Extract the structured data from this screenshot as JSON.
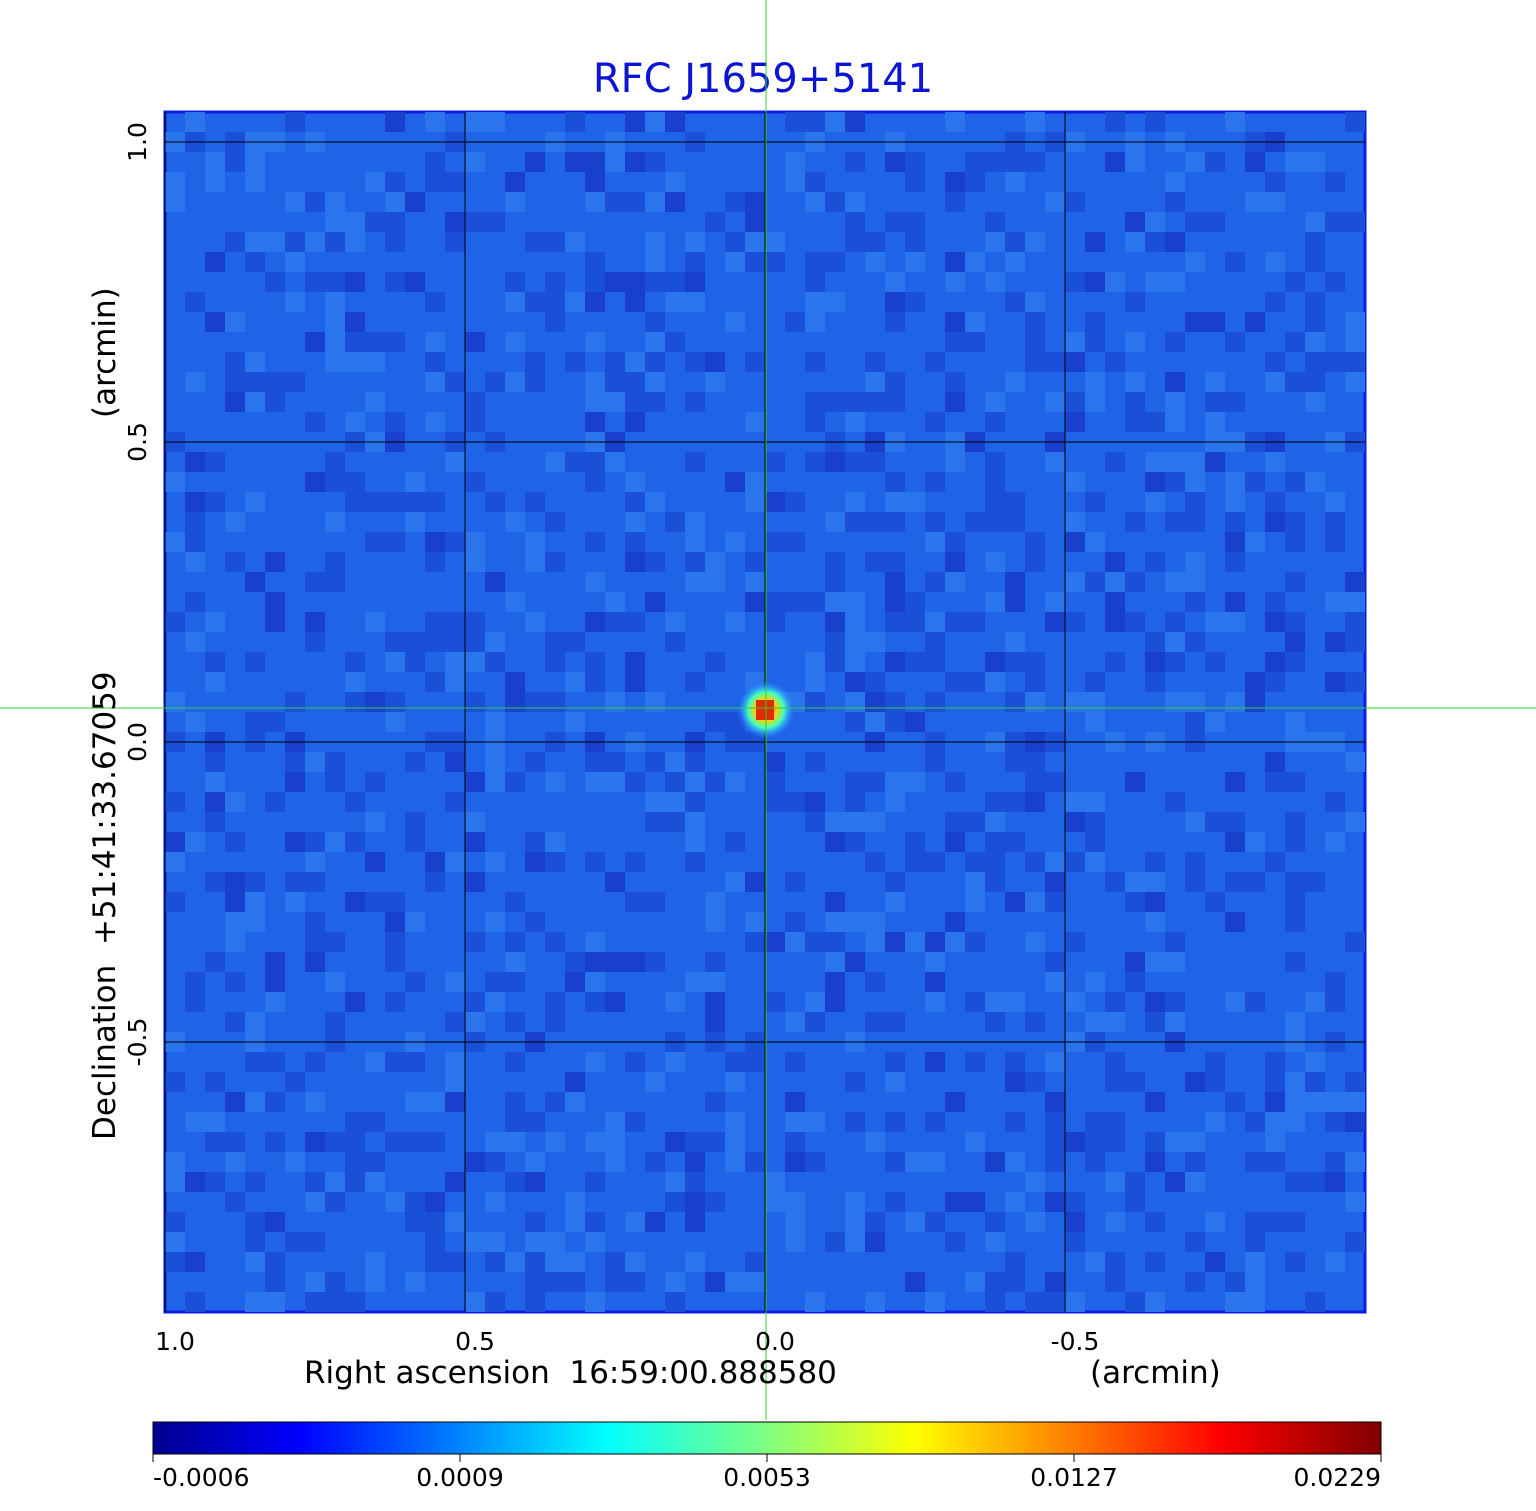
{
  "chart_data": {
    "type": "heatmap",
    "title": "RFC J1659+5141",
    "title_color": "#0a14d2",
    "xlabel": "Right ascension  16:59:00.888580",
    "xunit": "(arcmin)",
    "ylabel": "Declination  +51:41:33.67059",
    "yunit": "(arcmin)",
    "xlim": [
      1.0,
      -1.0
    ],
    "ylim": [
      -0.95,
      1.05
    ],
    "x_ticks": [
      1.0,
      0.5,
      0.0,
      -0.5
    ],
    "x_tick_labels": [
      "1.0",
      "0.5",
      "0.0",
      "-0.5"
    ],
    "y_ticks": [
      1.0,
      0.5,
      0.0,
      -0.5
    ],
    "y_tick_labels": [
      "1.0",
      "0.5",
      "0.0",
      "-0.5"
    ],
    "grid": true,
    "crosshair": {
      "x": 0.0,
      "y": 0.065,
      "color": "#33cc33"
    },
    "source": {
      "x": 0.0,
      "y": 0.065,
      "peak_value": 0.0229
    },
    "colormap": "jet",
    "colorbar": {
      "orientation": "horizontal",
      "tick_labels": [
        "-0.0006",
        "0.0009",
        "0.0053",
        "0.0127",
        "0.0229"
      ],
      "min": -0.0006,
      "max": 0.0229
    },
    "background_color": "#1f63e6",
    "frame_color": "#0a1ee6"
  }
}
